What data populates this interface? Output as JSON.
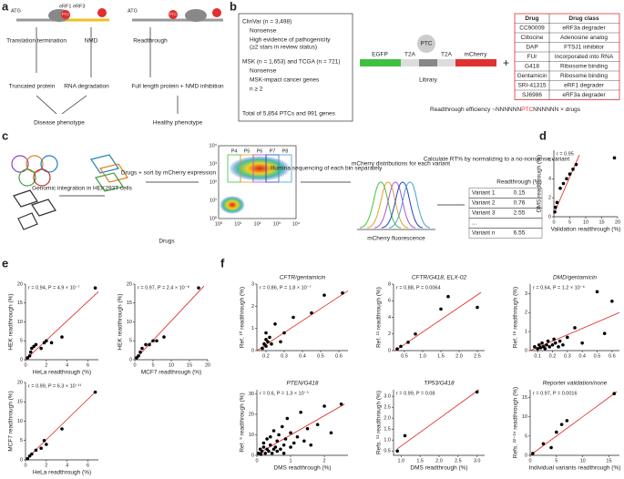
{
  "labels": [
    "a",
    "b",
    "c",
    "d",
    "e",
    "f"
  ],
  "a": {
    "atg_left": "ATG",
    "atg_right": "ATG",
    "ptc_left": "PTC",
    "ptc_right": "PTC",
    "erf1": "eRF1",
    "erf3": "eRF3",
    "termination": "Translation termination",
    "nmd": "NMD",
    "readthrough": "Readthrough",
    "truncated": "Truncated protein",
    "rna_degradation": "RNA degradation",
    "full_length": "Full length protein + NMD inhibition",
    "disease": "Disease phenotype",
    "healthy": "Healthy phenotype"
  },
  "b": {
    "clinvar": "ClinVar (n = 3,498)",
    "clinvar_items": [
      "Nonsense",
      "High evidence of pathogenicity",
      "(≥2 stars in review status)"
    ],
    "msk": "MSK (n = 1,653) and TCGA (n = 721)",
    "msk_items": [
      "Nonsense",
      "MSK-impact cancer genes",
      "n ≥ 2"
    ],
    "total": "Total of 5,854 PTCs and 991 genes",
    "ptc": "PTC",
    "construct": [
      "EGFP",
      "T2A",
      "T2A",
      "mCherry"
    ],
    "library": "Library",
    "plus": "+",
    "drug_header": [
      "Drug",
      "Drug class"
    ],
    "drugs": [
      [
        "CC90009",
        "eRF3a degrader"
      ],
      [
        "Clitocine",
        "Adenosine analog"
      ],
      [
        "DAP",
        "FTSJ1 inhibitor"
      ],
      [
        "FUr",
        "Incorporated into RNA"
      ],
      [
        "G418",
        "Ribosome binding"
      ],
      [
        "Gentamicin",
        "Ribosome binding"
      ],
      [
        "SRI-41315",
        "eRF1 degrader"
      ],
      [
        "SJ6986",
        "eRF3a degrader"
      ]
    ],
    "efficiency": [
      "Readthrough efficiency ~NNNNNN",
      "PTC",
      "NNNNNN × drugs"
    ]
  },
  "c": {
    "integration": "Genomic integration in HEK293T cells",
    "sort": "Drugs + sort by mCherry expression",
    "drugs": "Drugs",
    "bins": [
      "P4",
      "P5",
      "P6",
      "P7",
      "P8"
    ],
    "facs_y": [
      "10⁴",
      "10³",
      "10²",
      "10¹",
      "10⁰"
    ],
    "facs_x": [
      "10⁰",
      "10¹",
      "10²",
      "10³",
      "10⁴"
    ],
    "sequencing": "Illumina sequencing of each bin separately",
    "distributions": "mCherry distributions for each variant",
    "fluorescence": "mCherry fluorescence",
    "normalize": "Calculate RT% by normalizing to a no-nonsense variant",
    "table_header": "Readthrough (%)",
    "table_rows": [
      [
        "Variant 1",
        "0.15"
      ],
      [
        "Variant 2",
        "0.76"
      ],
      [
        "Variant 3",
        "2.55"
      ],
      [
        "...",
        ""
      ],
      [
        "Variant n",
        "6.55"
      ]
    ]
  },
  "chart_data": [
    {
      "type": "scatter",
      "annotation": "r = 0.95",
      "xlabel": "Validation readthrough (%)",
      "ylabel": "DMS readthrough (%)",
      "xlim": [
        0,
        20
      ],
      "ylim": [
        0,
        7
      ],
      "xticks": [
        0,
        5,
        10,
        15,
        20
      ],
      "yticks": [
        0,
        2,
        4,
        6
      ],
      "x": [
        0.3,
        0.5,
        1,
        2,
        3,
        4,
        5,
        6,
        7,
        19
      ],
      "y": [
        0.5,
        1,
        1.5,
        3,
        3.5,
        4,
        4.5,
        5,
        5.5,
        6.2
      ],
      "color": "#000000",
      "fit_color": "#e02020",
      "fit": {
        "x": [
          0,
          8
        ],
        "y": [
          0.3,
          6.5
        ]
      }
    },
    {
      "type": "scatter",
      "annotation": "r = 0.94, P = 4.9 × 10⁻⁷",
      "xlabel": "HeLa readthrough (%)",
      "ylabel": "HEK readthrough (%)",
      "xlim": [
        0,
        7
      ],
      "ylim": [
        0,
        20
      ],
      "xticks": [
        0,
        2,
        4,
        6
      ],
      "yticks": [
        0,
        5,
        10,
        15,
        20
      ],
      "x": [
        0.2,
        0.4,
        0.5,
        0.6,
        0.8,
        1,
        1.5,
        1.8,
        2,
        2.5,
        3.5,
        6.7
      ],
      "y": [
        0.5,
        1,
        2,
        3,
        3.5,
        4,
        3,
        4.5,
        5,
        4.5,
        6,
        19
      ],
      "color": "#000000",
      "fit_color": "#e02020",
      "fit": {
        "x": [
          0,
          7
        ],
        "y": [
          0,
          18
        ]
      }
    },
    {
      "type": "scatter",
      "annotation": "r = 0.97, P = 2.4 × 10⁻⁸",
      "xlabel": "MCF7 readthrough (%)",
      "ylabel": "HEK readthrough (%)",
      "xlim": [
        0,
        20
      ],
      "ylim": [
        0,
        20
      ],
      "xticks": [
        0,
        5,
        10,
        15,
        20
      ],
      "yticks": [
        0,
        5,
        10,
        15,
        20
      ],
      "x": [
        0.5,
        1,
        1.5,
        2,
        3,
        4,
        5,
        6,
        8,
        17.5
      ],
      "y": [
        0.5,
        1,
        2,
        3,
        4,
        4,
        5,
        5,
        6,
        19
      ],
      "color": "#000000",
      "fit_color": "#e02020",
      "fit": {
        "x": [
          0,
          19
        ],
        "y": [
          0,
          19.5
        ]
      }
    },
    {
      "type": "scatter",
      "annotation": "r = 0.99, P = 6.3 × 10⁻¹¹",
      "xlabel": "HeLa readthrough (%)",
      "ylabel": "MCF7 readthrough (%)",
      "xlim": [
        0,
        7
      ],
      "ylim": [
        0,
        20
      ],
      "xticks": [
        0,
        2,
        4,
        6
      ],
      "yticks": [
        0,
        5,
        10,
        15,
        20
      ],
      "x": [
        0.2,
        0.4,
        0.6,
        1,
        1.5,
        1.8,
        2,
        3.5,
        6.7
      ],
      "y": [
        0.3,
        1,
        1.5,
        2.5,
        3,
        5,
        4,
        8,
        17.5
      ],
      "color": "#000000",
      "fit_color": "#e02020",
      "fit": {
        "x": [
          0,
          6.8
        ],
        "y": [
          0,
          17.8
        ]
      }
    },
    {
      "type": "scatter",
      "title": "CFTR/gentamicin",
      "annotation": "r = 0.86, P = 1.8 × 10⁻⁷",
      "ylabel": "Ref. ¹⁰ readthrough (%)",
      "xlim": [
        0.15,
        0.65
      ],
      "ylim": [
        0,
        3
      ],
      "xticks": [
        0.2,
        0.3,
        0.4,
        0.5,
        0.6
      ],
      "yticks": [
        0,
        1,
        2,
        3
      ],
      "x": [
        0.18,
        0.19,
        0.2,
        0.2,
        0.21,
        0.22,
        0.2,
        0.23,
        0.25,
        0.28,
        0.3,
        0.35,
        0.45,
        0.52,
        0.62
      ],
      "y": [
        0.1,
        0.3,
        0.5,
        0.2,
        0.4,
        0.6,
        0.8,
        0.3,
        1.2,
        0.4,
        0.8,
        1.5,
        1.7,
        2.5,
        2.6
      ],
      "color": "#000000",
      "fit_color": "#e02020",
      "fit": {
        "x": [
          0.15,
          0.65
        ],
        "y": [
          0,
          2.7
        ]
      }
    },
    {
      "type": "scatter",
      "title": "CFTR/G418, ELX-02",
      "annotation": "r = 0.88, P = 0.0064",
      "ylabel": "Ref. ¹¹ readthrough (%)",
      "xlim": [
        0.2,
        2.7
      ],
      "ylim": [
        0,
        8
      ],
      "xticks": [
        0.5,
        {
          "value": 1,
          "label": "1.0"
        },
        1.5,
        {
          "value": 2,
          "label": "2.0"
        },
        2.5
      ],
      "yticks": [
        0,
        2,
        4,
        6,
        8
      ],
      "x": [
        0.3,
        0.4,
        0.6,
        0.8,
        1.5,
        1.7,
        2.5
      ],
      "y": [
        0.2,
        0.5,
        1,
        2,
        5,
        6.5,
        5.2
      ],
      "color": "#000000",
      "fit_color": "#e02020",
      "fit": {
        "x": [
          0.25,
          2.6
        ],
        "y": [
          0,
          7
        ]
      }
    },
    {
      "type": "scatter",
      "title": "DMD/gentamicin",
      "annotation": "r = 0.64, P = 1.2 × 10⁻⁶",
      "ylabel": "Ref. ¹⁸ readthrough (%)",
      "xlim": [
        0.05,
        0.65
      ],
      "ylim": [
        0,
        3.5
      ],
      "xticks": [
        0.1,
        0.2,
        0.3,
        0.4,
        0.5,
        0.6
      ],
      "yticks": [
        0,
        1,
        2,
        3
      ],
      "x": [
        0.08,
        0.1,
        0.11,
        0.12,
        0.13,
        0.14,
        0.15,
        0.16,
        0.17,
        0.18,
        0.2,
        0.21,
        0.22,
        0.24,
        0.25,
        0.27,
        0.3,
        0.35,
        0.4,
        0.5,
        0.55,
        0.6
      ],
      "y": [
        0.2,
        0.1,
        0.3,
        0.15,
        0.4,
        0.2,
        0.1,
        0.3,
        0.5,
        0.2,
        0.3,
        0.6,
        0.4,
        0.2,
        0.5,
        0.3,
        0.7,
        1.2,
        0.4,
        3.1,
        0.9,
        2.6
      ],
      "color": "#000000",
      "fit_color": "#e02020",
      "fit": {
        "x": [
          0.05,
          0.65
        ],
        "y": [
          0,
          2
        ]
      }
    },
    {
      "type": "scatter",
      "title": "PTEN/G418",
      "annotation": "r = 0.6, P = 1.3 × 10⁻⁵",
      "xlabel": "DMS readthrough (%)",
      "ylabel": "Ref. ⁹ readthrough (%)",
      "xlim": [
        0,
        2.7
      ],
      "ylim": [
        0,
        32
      ],
      "xticks": [
        0,
        1,
        2
      ],
      "yticks": [
        0,
        10,
        20,
        30
      ],
      "x": [
        0.05,
        0.1,
        0.12,
        0.15,
        0.2,
        0.2,
        0.25,
        0.3,
        0.3,
        0.35,
        0.4,
        0.4,
        0.45,
        0.5,
        0.5,
        0.55,
        0.6,
        0.6,
        0.65,
        0.7,
        0.75,
        0.8,
        0.8,
        0.85,
        0.9,
        1,
        1,
        1.1,
        1.2,
        1.3,
        1.4,
        1.5,
        1.6,
        1.8,
        2,
        2.2,
        2.5
      ],
      "y": [
        1,
        3,
        0.5,
        2,
        4,
        6,
        1,
        3,
        8,
        2,
        5,
        9,
        1,
        3,
        12,
        4,
        2,
        7,
        10,
        3,
        14,
        5,
        1,
        8,
        18,
        4,
        11,
        6,
        9,
        21,
        7,
        13,
        5,
        15,
        24,
        11,
        25
      ],
      "color": "#000000",
      "fit_color": "#e02020",
      "fit": {
        "x": [
          0,
          2.6
        ],
        "y": [
          0.5,
          25
        ]
      }
    },
    {
      "type": "scatter",
      "title": "TP53/G418",
      "annotation": "r = 0.99, P = 0.08",
      "xlabel": "DMS readthrough (%)",
      "ylabel": "Refs. ¹¹ readthrough (%)",
      "xlim": [
        0.8,
        3.2
      ],
      "ylim": [
        0.3,
        3.3
      ],
      "xticks": [
        {
          "value": 1,
          "label": "1.0"
        },
        1.5,
        {
          "value": 2,
          "label": "2.0"
        },
        2.5,
        {
          "value": 3,
          "label": "3.0"
        }
      ],
      "yticks": [
        0.5,
        {
          "value": 1,
          "label": "1.0"
        },
        1.5,
        {
          "value": 2,
          "label": "2.0"
        },
        2.5,
        {
          "value": 3,
          "label": "3.0"
        }
      ],
      "x": [
        0.9,
        1.1,
        3
      ],
      "y": [
        0.5,
        1.2,
        3.2
      ],
      "color": "#000000",
      "fit_color": "#e02020",
      "fit": {
        "x": [
          0.9,
          3.05
        ],
        "y": [
          0.6,
          3.3
        ]
      }
    },
    {
      "type": "scatter",
      "title": "Reporter validation/none",
      "annotation": "r = 0.97, P = 0.0016",
      "xlabel": "Individual variants readthrough (%)",
      "ylabel": "Refs. ²²⁻²⁴ readthrough (%)",
      "xlim": [
        0,
        17
      ],
      "ylim": [
        0,
        17
      ],
      "xticks": [
        0,
        5,
        10,
        15
      ],
      "yticks": [
        0,
        5,
        10,
        15
      ],
      "x": [
        0.5,
        2.5,
        4,
        5,
        6,
        7,
        16
      ],
      "y": [
        0.5,
        3,
        2,
        6,
        8,
        9,
        16
      ],
      "color": "#000000",
      "fit_color": "#e02020",
      "fit": {
        "x": [
          0,
          16.5
        ],
        "y": [
          0,
          16.5
        ]
      }
    }
  ]
}
